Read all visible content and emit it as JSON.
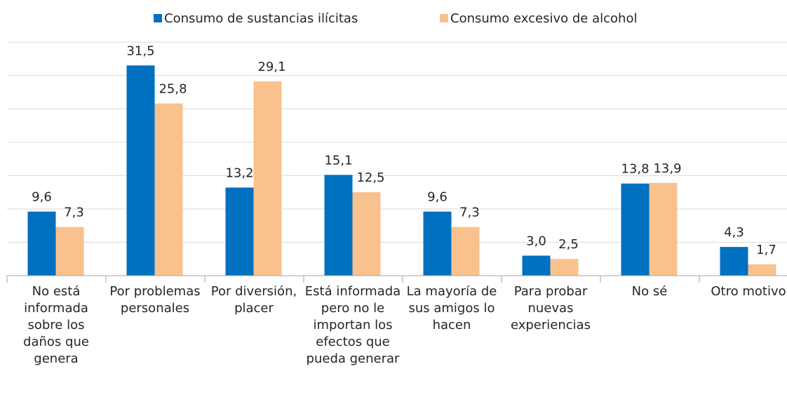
{
  "chart_data": {
    "type": "bar",
    "categories": [
      "No está informada sobre los daños que genera",
      "Por problemas personales",
      "Por diversión, placer",
      "Está informada pero no le importan los efectos que pueda generar",
      "La mayoría de sus amigos lo hacen",
      "Para probar nuevas experiencias",
      "No sé",
      "Otro motivo"
    ],
    "series": [
      {
        "name": "Consumo de sustancias ilícitas",
        "color": "#0070c0",
        "values": [
          9.6,
          31.5,
          13.2,
          15.1,
          9.6,
          3.0,
          13.8,
          4.3
        ],
        "value_labels": [
          "9,6",
          "31,5",
          "13,2",
          "15,1",
          "9,6",
          "3,0",
          "13,8",
          "4,3"
        ]
      },
      {
        "name": "Consumo excesivo de alcohol",
        "color": "#f9c18e",
        "values": [
          7.3,
          25.8,
          29.1,
          12.5,
          7.3,
          2.5,
          13.9,
          1.7
        ],
        "value_labels": [
          "7,3",
          "25,8",
          "29,1",
          "12,5",
          "7,3",
          "2,5",
          "13,9",
          "1,7"
        ]
      }
    ],
    "ylim": [
      0,
      35
    ],
    "yticks": [
      0,
      5,
      10,
      15,
      20,
      25,
      30,
      35
    ],
    "grid": true,
    "legend": "top"
  }
}
